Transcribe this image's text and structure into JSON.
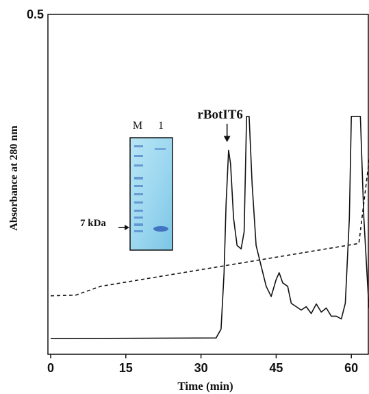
{
  "chart_data": {
    "type": "line",
    "xlabel": "Time (min)",
    "ylabel": "Absorbance at 280 nm",
    "xlim": [
      0,
      68
    ],
    "ylim": [
      0,
      0.5
    ],
    "x_ticks": [
      0,
      15,
      30,
      45,
      60
    ],
    "y_ticks": [
      0.5
    ],
    "grid": false,
    "series": [
      {
        "style": "solid",
        "points": [
          [
            0,
            0.023
          ],
          [
            33,
            0.024
          ],
          [
            34,
            0.037
          ],
          [
            34.6,
            0.12
          ],
          [
            35,
            0.22
          ],
          [
            35.5,
            0.3
          ],
          [
            35.9,
            0.28
          ],
          [
            36.5,
            0.2
          ],
          [
            37.2,
            0.16
          ],
          [
            38,
            0.155
          ],
          [
            38.6,
            0.18
          ],
          [
            39.1,
            0.35
          ],
          [
            39.6,
            0.35
          ],
          [
            40.2,
            0.25
          ],
          [
            41,
            0.16
          ],
          [
            42,
            0.13
          ],
          [
            43,
            0.1
          ],
          [
            44,
            0.085
          ],
          [
            45,
            0.11
          ],
          [
            45.6,
            0.12
          ],
          [
            46.3,
            0.105
          ],
          [
            47.3,
            0.1
          ],
          [
            48,
            0.075
          ],
          [
            50,
            0.065
          ],
          [
            51,
            0.07
          ],
          [
            52,
            0.06
          ],
          [
            53,
            0.074
          ],
          [
            54,
            0.062
          ],
          [
            55,
            0.068
          ],
          [
            56,
            0.056
          ],
          [
            57,
            0.056
          ],
          [
            58,
            0.052
          ],
          [
            58.8,
            0.075
          ],
          [
            59.6,
            0.2
          ],
          [
            60,
            0.35
          ],
          [
            61.8,
            0.35
          ],
          [
            62.5,
            0.2
          ],
          [
            63.5,
            0.07
          ],
          [
            64.5,
            0.052
          ],
          [
            68,
            0.053
          ]
        ]
      },
      {
        "style": "dashed",
        "points": [
          [
            0,
            0.086
          ],
          [
            5,
            0.087
          ],
          [
            10,
            0.1
          ],
          [
            61.5,
            0.163
          ],
          [
            64,
            0.313
          ],
          [
            68,
            0.313
          ]
        ]
      }
    ],
    "annotations": [
      {
        "text": "rBotIT6",
        "x": 35.2,
        "y": 0.353,
        "arrow_to": [
          35.2,
          0.3
        ]
      }
    ],
    "inset": {
      "type": "gel-image",
      "lanes": [
        "M",
        "1"
      ],
      "marker_label": "7 kDa"
    }
  }
}
